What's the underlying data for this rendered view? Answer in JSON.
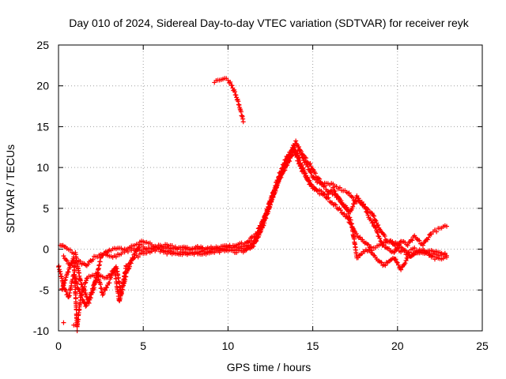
{
  "colors": {
    "series": "#ff0000",
    "grid": "#a0a0a0",
    "frame": "#000000"
  },
  "chart_data": {
    "type": "scatter",
    "title": "Day 010 of 2024, Sidereal Day-to-day VTEC variation (SDTVAR) for receiver reyk",
    "xlabel": "GPS time / hours",
    "ylabel": "SDTVAR / TECUs",
    "xlim": [
      0,
      25
    ],
    "ylim": [
      -10,
      25
    ],
    "xticks": [
      0,
      5,
      10,
      15,
      20,
      25
    ],
    "yticks": [
      -10,
      -5,
      0,
      5,
      10,
      15,
      20,
      25
    ],
    "grid": true,
    "marker": "plus",
    "series": [
      {
        "name": "SDTVAR traces",
        "tracks": [
          [
            [
              0.0,
              -2.0
            ],
            [
              0.3,
              -4.5
            ],
            [
              0.6,
              -6.0
            ],
            [
              0.9,
              -3.0
            ],
            [
              1.2,
              -5.0
            ],
            [
              1.6,
              -7.0
            ],
            [
              2.0,
              -5.0
            ],
            [
              2.3,
              -3.0
            ],
            [
              2.6,
              -5.5
            ],
            [
              3.0,
              -4.0
            ],
            [
              3.4,
              -2.0
            ],
            [
              3.7,
              -5.5
            ],
            [
              4.0,
              -3.0
            ],
            [
              4.4,
              -1.0
            ],
            [
              4.8,
              0.5
            ],
            [
              5.3,
              0.0
            ],
            [
              6.0,
              0.5
            ],
            [
              7.0,
              0.2
            ],
            [
              8.0,
              0.0
            ],
            [
              9.0,
              0.2
            ],
            [
              10.0,
              0.3
            ],
            [
              11.0,
              0.5
            ],
            [
              11.6,
              1.0
            ],
            [
              12.0,
              2.5
            ],
            [
              12.5,
              5.5
            ],
            [
              13.0,
              8.5
            ],
            [
              13.5,
              10.5
            ],
            [
              13.9,
              12.5
            ],
            [
              14.2,
              11.0
            ],
            [
              14.6,
              9.0
            ],
            [
              15.0,
              7.5
            ],
            [
              15.5,
              7.0
            ],
            [
              16.0,
              6.0
            ],
            [
              16.5,
              5.0
            ],
            [
              17.0,
              4.0
            ],
            [
              17.5,
              2.0
            ],
            [
              18.0,
              1.0
            ],
            [
              18.5,
              0.0
            ],
            [
              19.0,
              0.5
            ],
            [
              19.5,
              1.0
            ],
            [
              20.0,
              0.0
            ],
            [
              20.5,
              -0.5
            ],
            [
              21.0,
              0.0
            ],
            [
              21.5,
              -0.5
            ],
            [
              22.0,
              0.0
            ],
            [
              22.5,
              -0.5
            ],
            [
              22.9,
              -0.8
            ]
          ],
          [
            [
              0.1,
              0.5
            ],
            [
              0.5,
              0.0
            ],
            [
              1.0,
              -0.5
            ],
            [
              1.3,
              -4.0
            ],
            [
              1.8,
              -6.5
            ],
            [
              2.2,
              -4.0
            ],
            [
              2.5,
              -1.0
            ],
            [
              3.0,
              0.0
            ],
            [
              3.5,
              0.0
            ],
            [
              4.0,
              0.0
            ],
            [
              4.5,
              0.5
            ],
            [
              5.0,
              1.0
            ],
            [
              5.5,
              0.5
            ],
            [
              6.0,
              0.0
            ],
            [
              7.0,
              -0.5
            ],
            [
              8.0,
              -0.5
            ],
            [
              9.0,
              -0.5
            ],
            [
              10.0,
              0.0
            ],
            [
              10.8,
              0.0
            ],
            [
              11.3,
              0.2
            ],
            [
              11.8,
              1.5
            ],
            [
              12.2,
              4.0
            ],
            [
              12.7,
              7.0
            ],
            [
              13.2,
              9.5
            ],
            [
              13.7,
              12.0
            ],
            [
              14.0,
              13.2
            ],
            [
              14.4,
              11.5
            ],
            [
              14.8,
              10.5
            ],
            [
              15.2,
              9.0
            ],
            [
              15.6,
              8.0
            ],
            [
              16.0,
              8.0
            ],
            [
              16.5,
              7.5
            ],
            [
              17.0,
              7.0
            ],
            [
              17.5,
              6.0
            ],
            [
              18.0,
              5.5
            ],
            [
              18.3,
              4.0
            ],
            [
              18.6,
              3.0
            ],
            [
              18.9,
              1.5
            ],
            [
              19.2,
              0.5
            ],
            [
              19.5,
              0.0
            ],
            [
              19.8,
              -0.5
            ],
            [
              20.2,
              1.0
            ],
            [
              20.6,
              0.5
            ],
            [
              21.0,
              1.5
            ],
            [
              21.5,
              0.5
            ],
            [
              22.0,
              2.0
            ],
            [
              22.5,
              2.5
            ],
            [
              22.9,
              2.8
            ]
          ],
          [
            [
              0.2,
              -5.0
            ],
            [
              0.5,
              -3.0
            ],
            [
              0.9,
              -1.0
            ],
            [
              1.1,
              -9.5
            ],
            [
              1.3,
              -6.0
            ],
            [
              1.7,
              -3.5
            ],
            [
              2.2,
              -3.0
            ],
            [
              2.8,
              -3.5
            ],
            [
              3.3,
              -2.5
            ],
            [
              3.6,
              -6.5
            ],
            [
              4.0,
              -2.0
            ],
            [
              4.5,
              -1.0
            ],
            [
              5.0,
              -0.5
            ],
            [
              5.8,
              0.0
            ],
            [
              6.5,
              -0.5
            ],
            [
              7.5,
              -0.5
            ],
            [
              8.5,
              -0.3
            ],
            [
              9.5,
              0.0
            ],
            [
              10.5,
              -0.3
            ],
            [
              11.0,
              -0.2
            ],
            [
              11.5,
              0.5
            ],
            [
              12.0,
              3.0
            ],
            [
              12.5,
              6.0
            ],
            [
              13.0,
              9.0
            ],
            [
              13.4,
              11.0
            ],
            [
              13.8,
              12.3
            ],
            [
              14.1,
              11.0
            ],
            [
              14.4,
              9.5
            ],
            [
              14.8,
              8.0
            ],
            [
              15.3,
              7.0
            ],
            [
              15.8,
              6.5
            ],
            [
              16.2,
              7.5
            ],
            [
              16.6,
              6.0
            ],
            [
              17.0,
              5.0
            ],
            [
              17.3,
              3.0
            ],
            [
              17.6,
              -1.0
            ],
            [
              17.9,
              -0.5
            ],
            [
              18.3,
              0.0
            ],
            [
              18.7,
              -1.0
            ],
            [
              19.2,
              -2.0
            ],
            [
              19.8,
              -1.0
            ],
            [
              20.2,
              -2.5
            ],
            [
              20.6,
              -1.0
            ],
            [
              21.0,
              -0.5
            ],
            [
              21.5,
              0.0
            ],
            [
              22.0,
              -1.0
            ],
            [
              22.5,
              -1.2
            ],
            [
              22.9,
              -1.0
            ]
          ],
          [
            [
              0.3,
              -1.0
            ],
            [
              0.7,
              -2.0
            ],
            [
              1.2,
              -1.5
            ],
            [
              1.6,
              -2.0
            ],
            [
              2.1,
              -1.0
            ],
            [
              2.7,
              -0.5
            ],
            [
              3.2,
              -1.0
            ],
            [
              3.8,
              -0.5
            ],
            [
              4.3,
              0.0
            ],
            [
              4.9,
              -0.2
            ],
            [
              5.4,
              0.0
            ],
            [
              6.2,
              0.2
            ],
            [
              7.2,
              0.0
            ],
            [
              8.2,
              0.2
            ],
            [
              9.2,
              0.0
            ],
            [
              10.2,
              0.2
            ],
            [
              11.1,
              0.8
            ],
            [
              11.7,
              2.0
            ],
            [
              12.3,
              4.5
            ],
            [
              12.9,
              8.0
            ],
            [
              13.4,
              10.0
            ],
            [
              13.9,
              12.0
            ],
            [
              14.3,
              11.8
            ],
            [
              14.7,
              10.0
            ],
            [
              15.1,
              8.5
            ],
            [
              15.5,
              8.0
            ],
            [
              16.0,
              7.0
            ],
            [
              16.4,
              6.5
            ],
            [
              16.8,
              5.5
            ],
            [
              17.2,
              4.5
            ],
            [
              17.6,
              6.5
            ],
            [
              18.1,
              5.0
            ],
            [
              18.5,
              4.5
            ],
            [
              18.8,
              3.0
            ],
            [
              19.1,
              2.0
            ],
            [
              19.4,
              1.0
            ],
            [
              19.8,
              0.8
            ],
            [
              20.3,
              0.0
            ],
            [
              20.8,
              -0.8
            ],
            [
              21.3,
              -0.2
            ],
            [
              21.8,
              -0.5
            ],
            [
              22.3,
              -0.8
            ],
            [
              22.8,
              -0.5
            ]
          ],
          [
            [
              9.2,
              20.5
            ],
            [
              9.5,
              20.8
            ],
            [
              9.8,
              20.9
            ],
            [
              10.0,
              20.7
            ],
            [
              10.2,
              20.2
            ],
            [
              10.4,
              19.2
            ],
            [
              10.6,
              18.0
            ],
            [
              10.8,
              16.5
            ],
            [
              10.9,
              15.6
            ]
          ]
        ],
        "isolated_points": [
          [
            0.3,
            -9.0
          ],
          [
            1.1,
            -10.0
          ],
          [
            0.9,
            -9.3
          ]
        ]
      }
    ]
  }
}
